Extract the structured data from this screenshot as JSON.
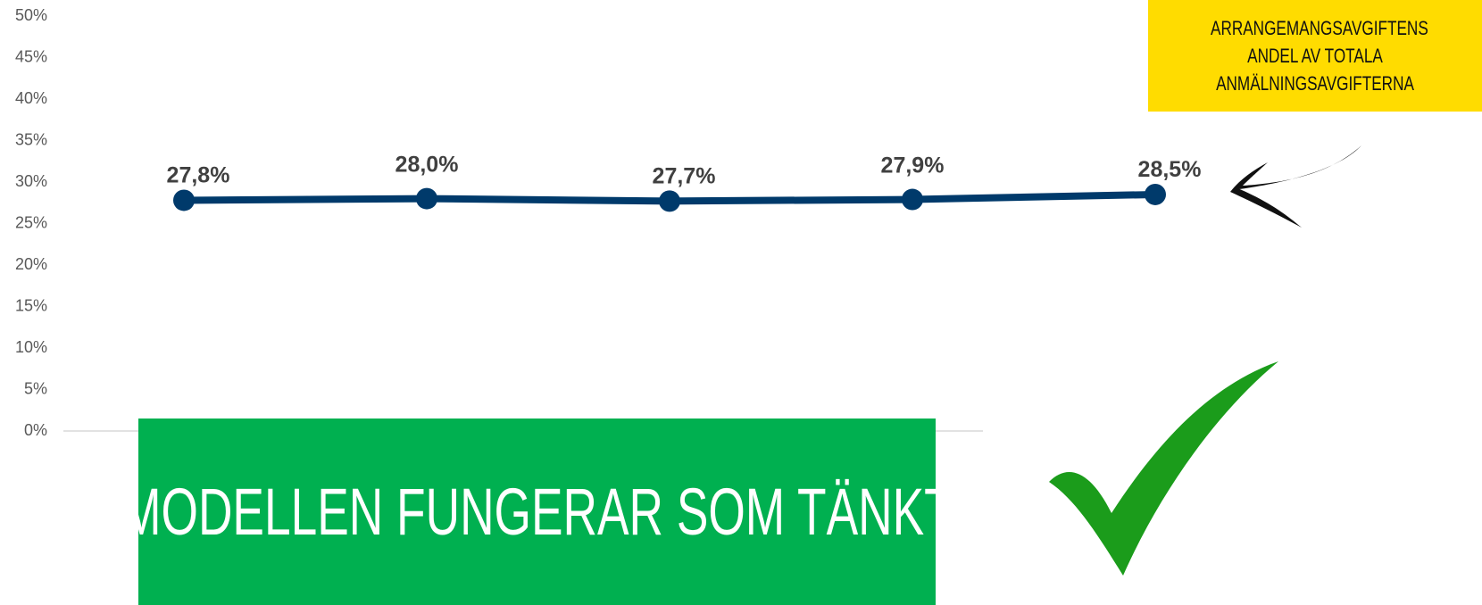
{
  "chart_data": {
    "type": "line",
    "categories": [
      null,
      null,
      null,
      null,
      null
    ],
    "series": [
      {
        "name": null,
        "color": "#003a6b",
        "values": [
          27.8,
          28.0,
          27.7,
          27.9,
          28.5
        ],
        "value_labels": [
          "27,8%",
          "28,0%",
          "27,7%",
          "27,9%",
          "28,5%"
        ]
      }
    ],
    "ylim": [
      0,
      50
    ],
    "yticks": [
      {
        "value": 0,
        "label": "0%"
      },
      {
        "value": 5,
        "label": "5%"
      },
      {
        "value": 10,
        "label": "10%"
      },
      {
        "value": 15,
        "label": "15%"
      },
      {
        "value": 20,
        "label": "20%"
      },
      {
        "value": 25,
        "label": "25%"
      },
      {
        "value": 30,
        "label": "30%"
      },
      {
        "value": 35,
        "label": "35%"
      },
      {
        "value": 40,
        "label": "40%"
      },
      {
        "value": 45,
        "label": "45%"
      },
      {
        "value": 50,
        "label": "50%"
      }
    ],
    "grid": false,
    "annotations": [
      "ARRANGEMANGSAVGIFTENS ANDEL AV TOTALA ANMÄLNINGSAVGIFTERNA",
      "MODELLEN FUNGERAR SOM TÄNKT"
    ]
  }
}
